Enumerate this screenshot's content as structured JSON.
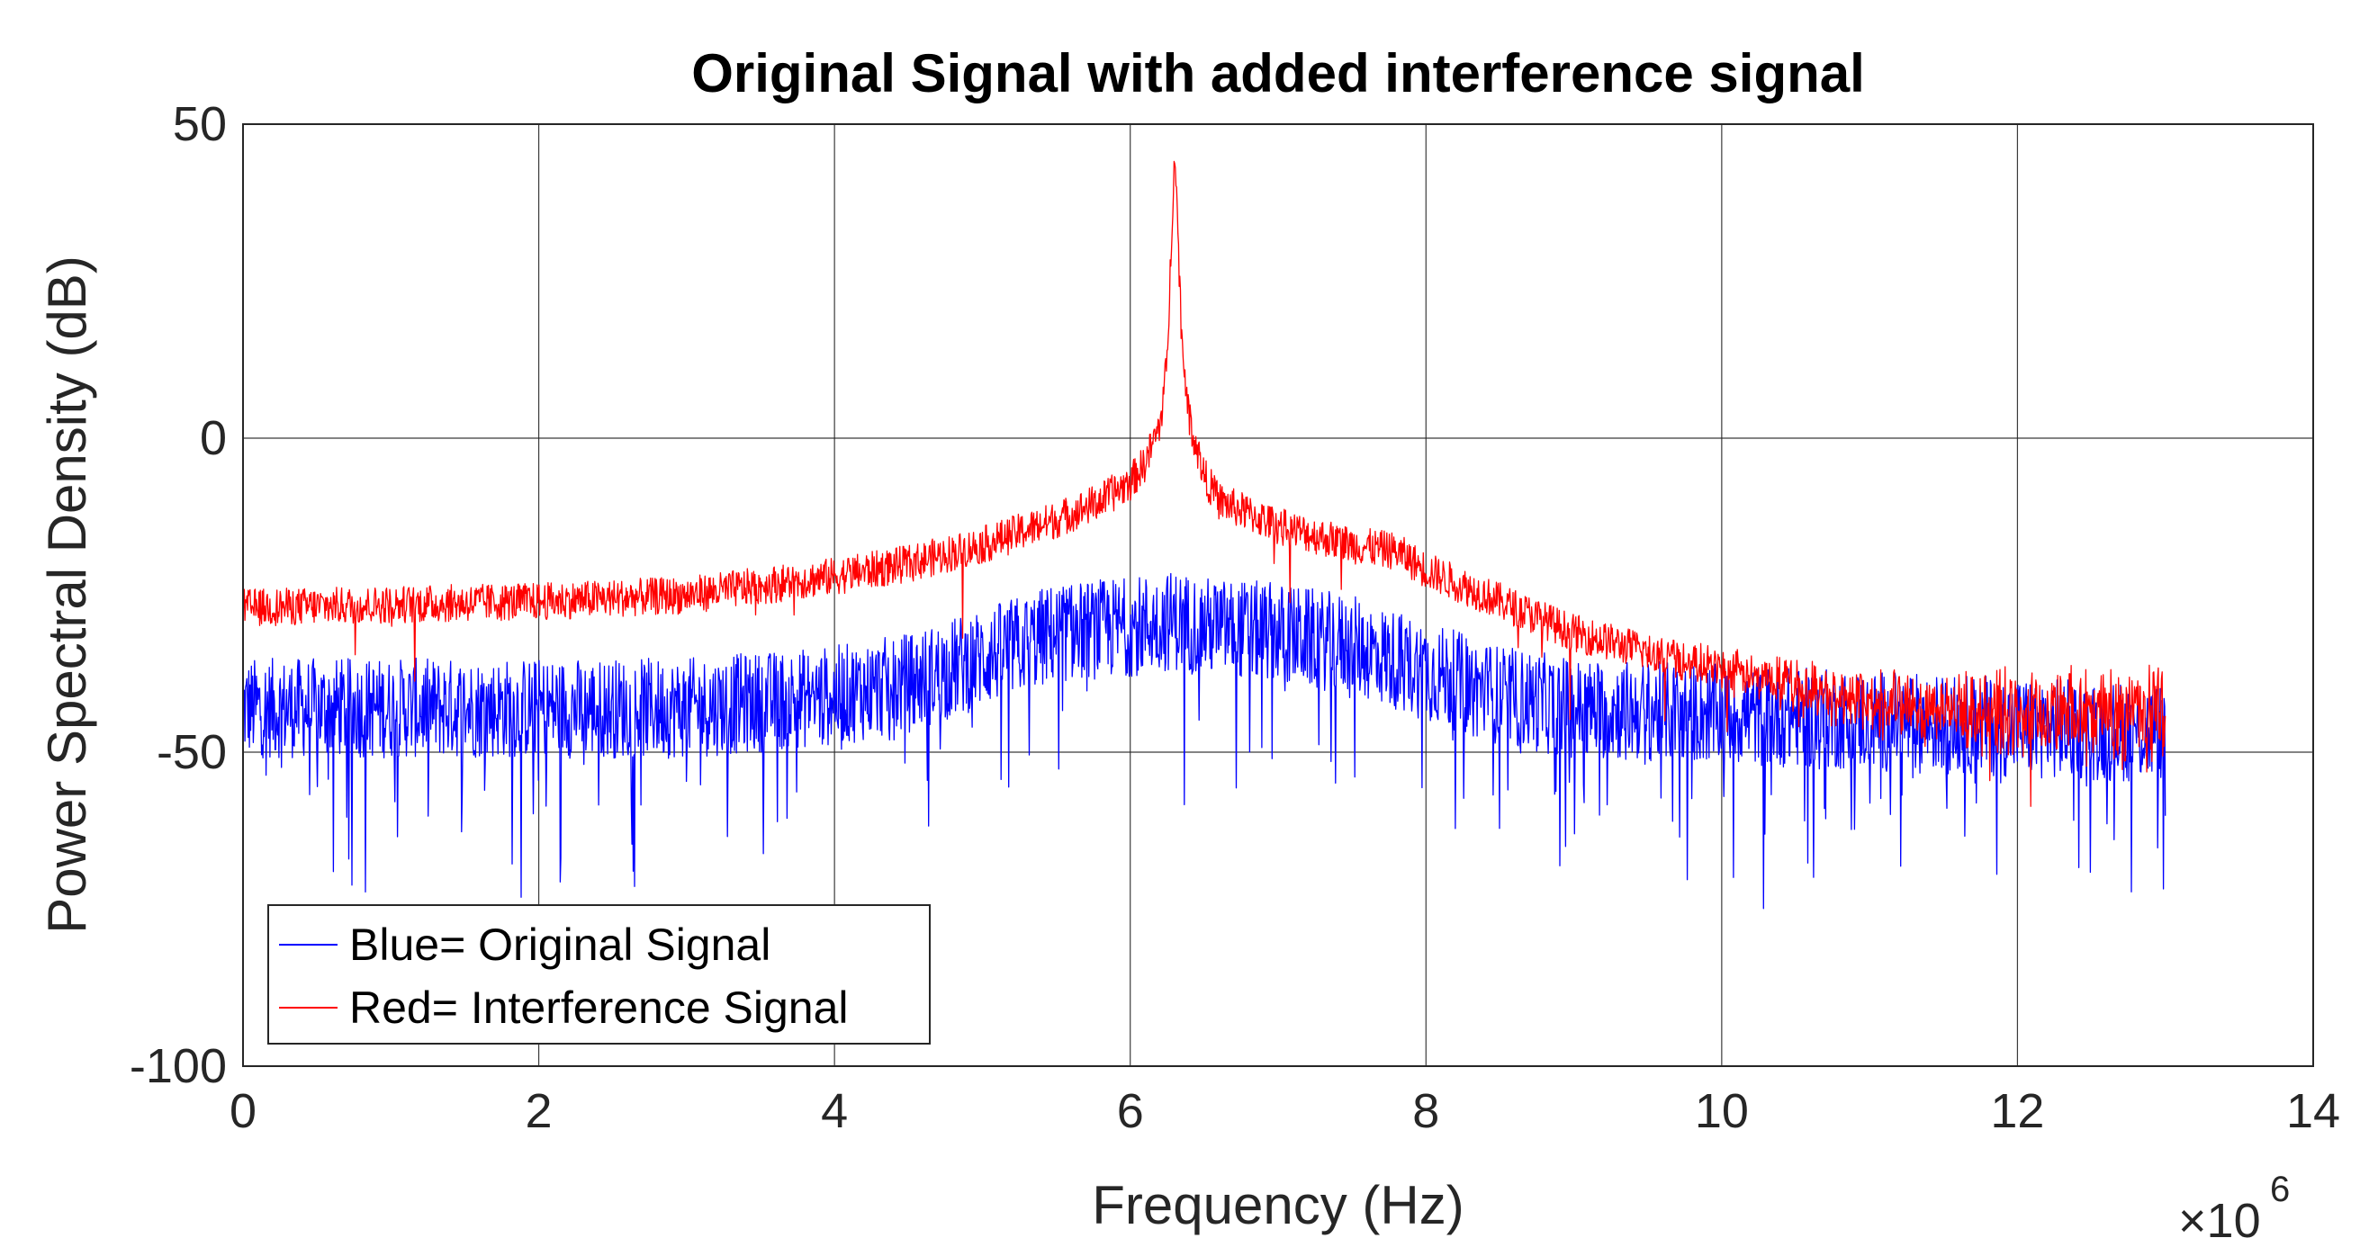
{
  "chart_data": {
    "type": "line",
    "title": "Original Signal with added interference signal",
    "xlabel": "Frequency (Hz)",
    "ylabel": "Power Spectral Density (dB)",
    "x_multiplier": "×10",
    "x_multiplier_exp": "6",
    "xlim": [
      0,
      14
    ],
    "ylim": [
      -100,
      50
    ],
    "xticks": [
      "0",
      "2",
      "4",
      "6",
      "8",
      "10",
      "12",
      "14"
    ],
    "yticks": [
      "50",
      "0",
      "-50",
      "-100"
    ],
    "xtick_values": [
      0,
      2,
      4,
      6,
      8,
      10,
      12,
      14
    ],
    "ytick_values": [
      50,
      0,
      -50,
      -100
    ],
    "grid": true,
    "legend_position": "bottom-left",
    "series": [
      {
        "name": "Blue= Original Signal",
        "color": "#0000ff",
        "noise_spread": 8,
        "x": [
          0,
          1,
          2,
          3,
          4,
          4.5,
          5,
          5.5,
          6,
          6.3,
          6.5,
          7,
          7.5,
          8,
          8.5,
          9,
          10,
          11,
          12,
          13
        ],
        "values": [
          -43,
          -43,
          -43,
          -43,
          -41,
          -39,
          -35,
          -31,
          -30,
          -29,
          -30,
          -31,
          -33,
          -37,
          -41,
          -43,
          -44,
          -45,
          -46,
          -47
        ]
      },
      {
        "name": "Red= Interference Signal",
        "color": "#ff0000",
        "noise_spread": 3,
        "x": [
          0,
          1,
          2,
          3,
          4,
          4.5,
          5,
          5.5,
          5.8,
          6.0,
          6.1,
          6.2,
          6.25,
          6.3,
          6.35,
          6.4,
          6.5,
          6.6,
          6.8,
          7,
          7.5,
          7.8,
          8,
          8.5,
          9,
          10,
          11,
          12,
          13
        ],
        "values": [
          -27,
          -26.5,
          -26,
          -25,
          -22,
          -20,
          -17,
          -13,
          -10,
          -7,
          -4,
          2,
          12,
          47,
          15,
          3,
          -6,
          -10,
          -12,
          -14,
          -17,
          -18,
          -21,
          -26,
          -31,
          -37,
          -42,
          -44,
          -44
        ]
      }
    ]
  }
}
